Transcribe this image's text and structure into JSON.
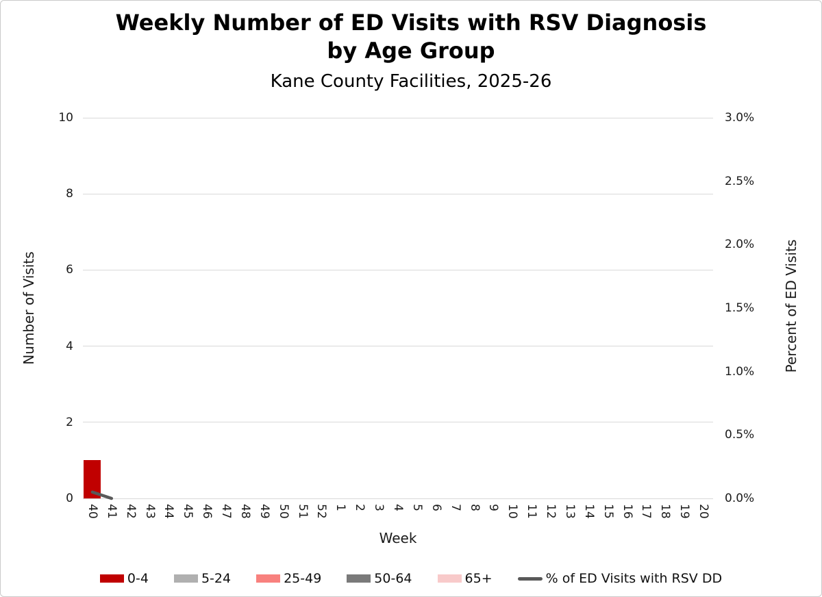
{
  "chart_data": {
    "type": "bar",
    "title_line1": "Weekly Number of ED Visits with RSV Diagnosis",
    "title_line2": "by Age Group",
    "subtitle": "Kane County Facilities, 2025-26",
    "xlabel": "Week",
    "ylabel_left": "Number of Visits",
    "ylabel_right": "Percent of ED Visits",
    "categories": [
      "40",
      "41",
      "42",
      "43",
      "44",
      "45",
      "46",
      "47",
      "48",
      "49",
      "50",
      "51",
      "52",
      "1",
      "2",
      "3",
      "4",
      "5",
      "6",
      "7",
      "8",
      "9",
      "10",
      "11",
      "12",
      "13",
      "14",
      "15",
      "16",
      "17",
      "18",
      "19",
      "20"
    ],
    "left_axis": {
      "min": 0,
      "max": 10,
      "tick_values": [
        0,
        2,
        4,
        6,
        8,
        10
      ],
      "tick_labels": [
        "0",
        "2",
        "4",
        "6",
        "8",
        "10"
      ]
    },
    "right_axis": {
      "min": 0,
      "max": 3.0,
      "tick_values": [
        0,
        0.5,
        1.0,
        1.5,
        2.0,
        2.5,
        3.0
      ],
      "tick_labels": [
        "0.0%",
        "0.5%",
        "1.0%",
        "1.5%",
        "2.0%",
        "2.5%",
        "3.0%"
      ]
    },
    "grid": true,
    "grid_color": "#d9d9d9",
    "legend_position": "bottom",
    "bar_series": [
      {
        "name": "0-4",
        "color": "#c00000",
        "values": [
          1,
          0,
          0,
          0,
          0,
          0,
          0,
          0,
          0,
          0,
          0,
          0,
          0,
          0,
          0,
          0,
          0,
          0,
          0,
          0,
          0,
          0,
          0,
          0,
          0,
          0,
          0,
          0,
          0,
          0,
          0,
          0,
          0
        ]
      },
      {
        "name": "5-24",
        "color": "#b0b0b0",
        "values": [
          0,
          0,
          0,
          0,
          0,
          0,
          0,
          0,
          0,
          0,
          0,
          0,
          0,
          0,
          0,
          0,
          0,
          0,
          0,
          0,
          0,
          0,
          0,
          0,
          0,
          0,
          0,
          0,
          0,
          0,
          0,
          0,
          0
        ]
      },
      {
        "name": "25-49",
        "color": "#f8817e",
        "values": [
          0,
          0,
          0,
          0,
          0,
          0,
          0,
          0,
          0,
          0,
          0,
          0,
          0,
          0,
          0,
          0,
          0,
          0,
          0,
          0,
          0,
          0,
          0,
          0,
          0,
          0,
          0,
          0,
          0,
          0,
          0,
          0,
          0
        ]
      },
      {
        "name": "50-64",
        "color": "#7a7a7a",
        "values": [
          0,
          0,
          0,
          0,
          0,
          0,
          0,
          0,
          0,
          0,
          0,
          0,
          0,
          0,
          0,
          0,
          0,
          0,
          0,
          0,
          0,
          0,
          0,
          0,
          0,
          0,
          0,
          0,
          0,
          0,
          0,
          0,
          0
        ]
      },
      {
        "name": "65+",
        "color": "#f8caca",
        "values": [
          0,
          0,
          0,
          0,
          0,
          0,
          0,
          0,
          0,
          0,
          0,
          0,
          0,
          0,
          0,
          0,
          0,
          0,
          0,
          0,
          0,
          0,
          0,
          0,
          0,
          0,
          0,
          0,
          0,
          0,
          0,
          0,
          0
        ]
      }
    ],
    "line_series": {
      "name": "% of ED Visits with RSV DD",
      "color": "#595959",
      "values": [
        0.05,
        0.0,
        null,
        null,
        null,
        null,
        null,
        null,
        null,
        null,
        null,
        null,
        null,
        null,
        null,
        null,
        null,
        null,
        null,
        null,
        null,
        null,
        null,
        null,
        null,
        null,
        null,
        null,
        null,
        null,
        null,
        null,
        null
      ]
    }
  }
}
